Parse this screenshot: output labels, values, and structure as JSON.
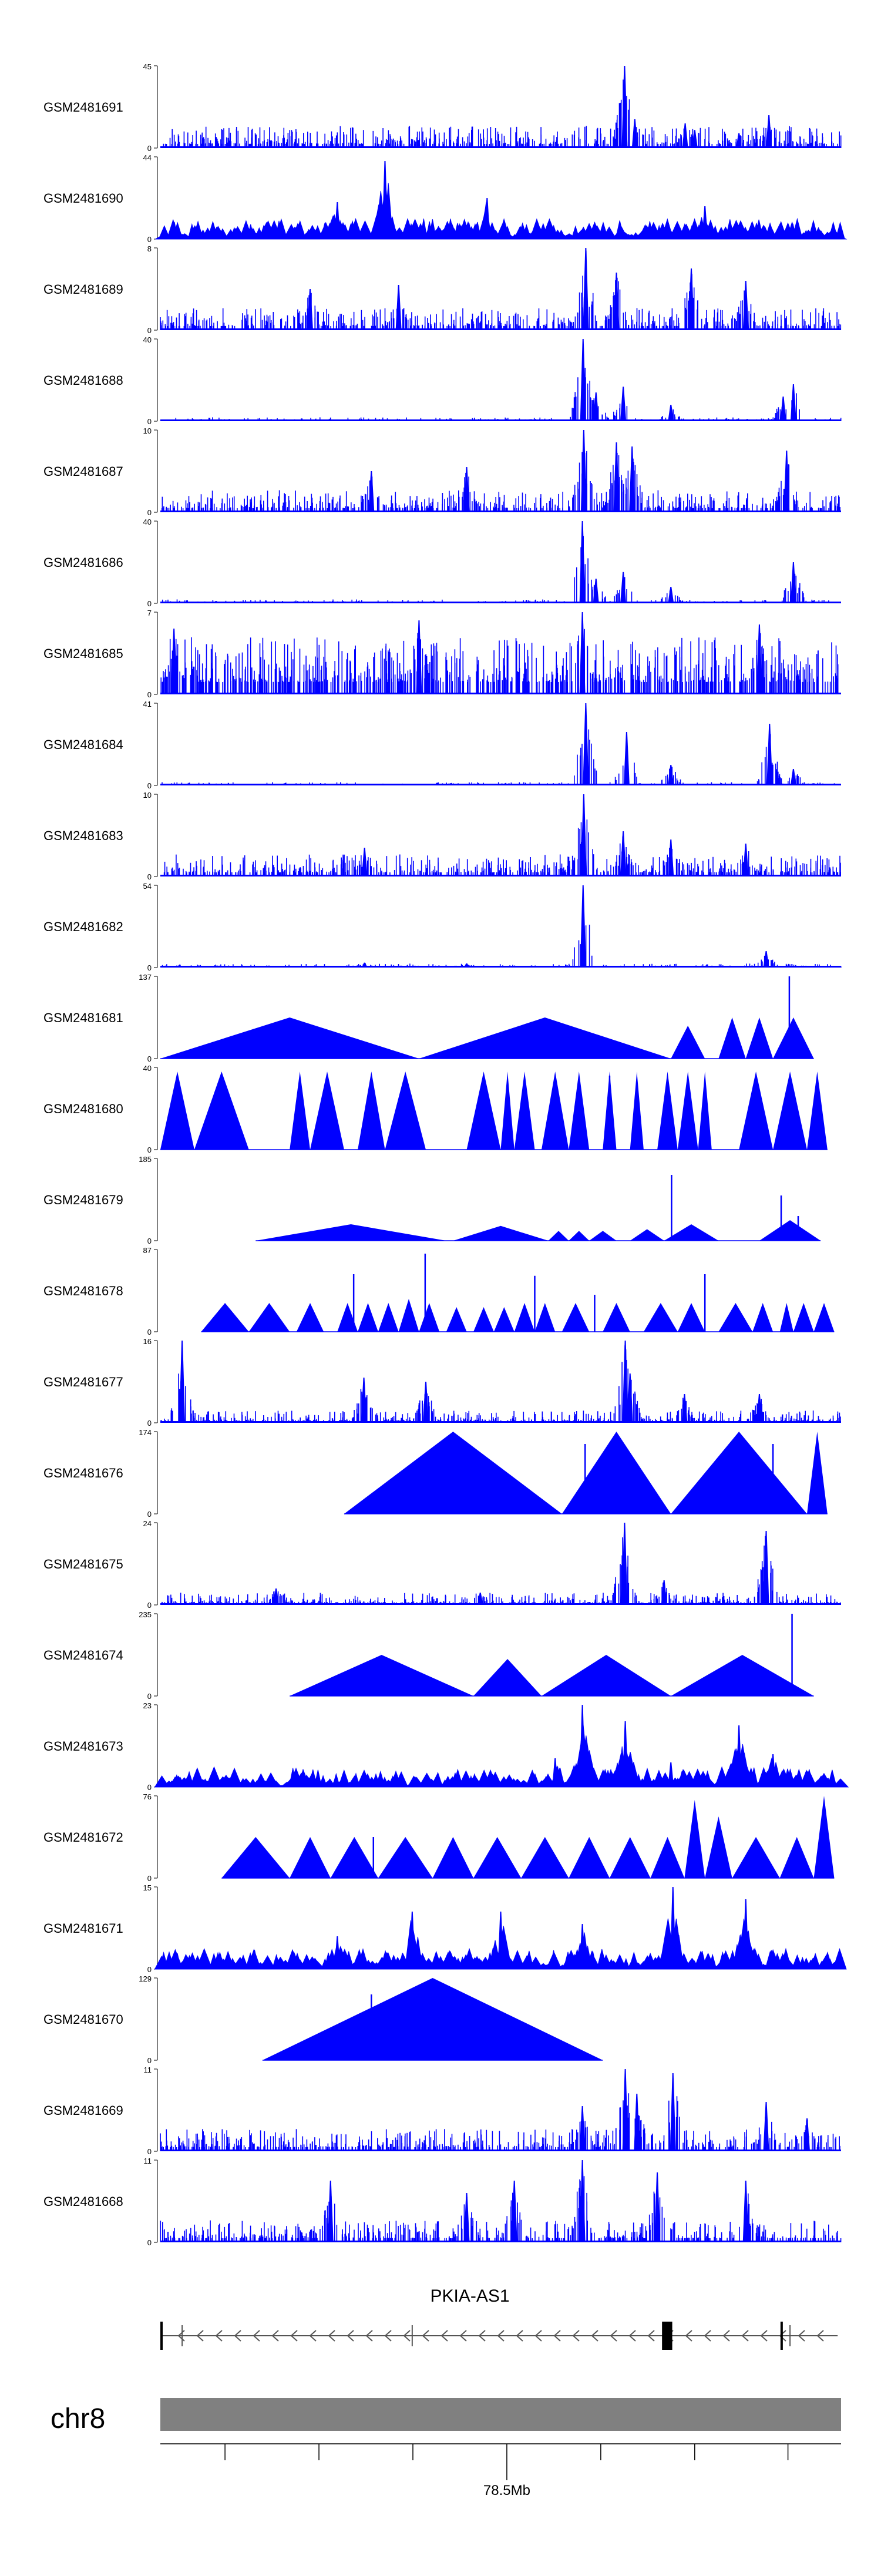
{
  "chart_data": {
    "type": "area",
    "title": "",
    "fill_color": "#0000ff",
    "tracks": [
      {
        "name": "GSM2481691",
        "ymax": "45",
        "ymin": "0",
        "style": "dense",
        "peaks": [
          [
            0.682,
            1.0
          ],
          [
            0.697,
            0.35
          ],
          [
            0.771,
            0.3
          ],
          [
            0.894,
            0.4
          ],
          [
            0.85,
            0.18
          ],
          [
            0.785,
            0.22
          ]
        ]
      },
      {
        "name": "GSM2481690",
        "ymax": "44",
        "ymin": "0",
        "style": "dense-tri",
        "peaks": [
          [
            0.33,
            0.95
          ],
          [
            0.26,
            0.45
          ],
          [
            0.48,
            0.5
          ],
          [
            0.8,
            0.4
          ]
        ]
      },
      {
        "name": "GSM2481689",
        "ymax": "8",
        "ymin": "0",
        "style": "dense",
        "peaks": [
          [
            0.625,
            1.0
          ],
          [
            0.67,
            0.7
          ],
          [
            0.78,
            0.75
          ],
          [
            0.35,
            0.55
          ],
          [
            0.22,
            0.5
          ],
          [
            0.86,
            0.6
          ]
        ]
      },
      {
        "name": "GSM2481688",
        "ymax": "40",
        "ymin": "0",
        "style": "sparse",
        "peaks": [
          [
            0.621,
            1.0
          ],
          [
            0.64,
            0.35
          ],
          [
            0.68,
            0.42
          ],
          [
            0.75,
            0.2
          ],
          [
            0.93,
            0.45
          ],
          [
            0.915,
            0.3
          ]
        ]
      },
      {
        "name": "GSM2481687",
        "ymax": "10",
        "ymin": "0",
        "style": "dense",
        "peaks": [
          [
            0.622,
            1.0
          ],
          [
            0.67,
            0.85
          ],
          [
            0.693,
            0.8
          ],
          [
            0.92,
            0.75
          ],
          [
            0.45,
            0.55
          ],
          [
            0.31,
            0.5
          ]
        ]
      },
      {
        "name": "GSM2481686",
        "ymax": "40",
        "ymin": "0",
        "style": "sparse",
        "peaks": [
          [
            0.62,
            1.0
          ],
          [
            0.68,
            0.38
          ],
          [
            0.75,
            0.2
          ],
          [
            0.93,
            0.5
          ],
          [
            0.64,
            0.3
          ]
        ]
      },
      {
        "name": "GSM2481685",
        "ymax": "7",
        "ymin": "0",
        "style": "very-dense",
        "peaks": [
          [
            0.02,
            0.8
          ],
          [
            0.38,
            0.9
          ],
          [
            0.62,
            1.0
          ],
          [
            0.88,
            0.85
          ]
        ]
      },
      {
        "name": "GSM2481684",
        "ymax": "41",
        "ymin": "0",
        "style": "clusters",
        "peaks": [
          [
            0.625,
            1.0
          ],
          [
            0.685,
            0.65
          ],
          [
            0.75,
            0.25
          ],
          [
            0.895,
            0.75
          ],
          [
            0.93,
            0.2
          ]
        ]
      },
      {
        "name": "GSM2481683",
        "ymax": "10",
        "ymin": "0",
        "style": "dense",
        "peaks": [
          [
            0.622,
            1.0
          ],
          [
            0.68,
            0.55
          ],
          [
            0.75,
            0.45
          ],
          [
            0.86,
            0.4
          ],
          [
            0.3,
            0.35
          ]
        ]
      },
      {
        "name": "GSM2481682",
        "ymax": "54",
        "ymin": "0",
        "style": "sparse",
        "peaks": [
          [
            0.621,
            1.0
          ],
          [
            0.89,
            0.2
          ],
          [
            0.3,
            0.06
          ],
          [
            0.45,
            0.05
          ]
        ]
      },
      {
        "name": "GSM2481681",
        "ymax": "137",
        "ymin": "0",
        "style": "triangles",
        "tri": [
          [
            0.0,
            0.5,
            0.38
          ],
          [
            0.38,
            0.5,
            0.75
          ],
          [
            0.75,
            0.4,
            0.8
          ],
          [
            0.82,
            0.5,
            0.86
          ],
          [
            0.86,
            0.5,
            0.9
          ],
          [
            0.9,
            0.5,
            0.96
          ]
        ],
        "spikes": [
          [
            0.924,
            1.0
          ]
        ]
      },
      {
        "name": "GSM2481680",
        "ymax": "40",
        "ymin": "0",
        "style": "triangles",
        "tri": [
          [
            0.0,
            0.95,
            0.05
          ],
          [
            0.05,
            0.95,
            0.13
          ],
          [
            0.19,
            0.95,
            0.22
          ],
          [
            0.22,
            0.95,
            0.27
          ],
          [
            0.29,
            0.95,
            0.33
          ],
          [
            0.33,
            0.95,
            0.39
          ],
          [
            0.45,
            0.95,
            0.5
          ],
          [
            0.5,
            0.95,
            0.52
          ],
          [
            0.52,
            0.95,
            0.55
          ],
          [
            0.56,
            0.95,
            0.6
          ],
          [
            0.6,
            0.95,
            0.63
          ],
          [
            0.65,
            0.95,
            0.67
          ],
          [
            0.69,
            0.95,
            0.71
          ],
          [
            0.73,
            0.95,
            0.76
          ],
          [
            0.76,
            0.95,
            0.79
          ],
          [
            0.79,
            0.95,
            0.81
          ],
          [
            0.85,
            0.95,
            0.9
          ],
          [
            0.9,
            0.95,
            0.95
          ],
          [
            0.95,
            0.95,
            0.98
          ]
        ],
        "spikes": [
          [
            0.66,
            0.9
          ]
        ]
      },
      {
        "name": "GSM2481679",
        "ymax": "185",
        "ymin": "0",
        "style": "triangles",
        "tri": [
          [
            0.14,
            0.2,
            0.42
          ],
          [
            0.43,
            0.18,
            0.57
          ],
          [
            0.57,
            0.12,
            0.6
          ],
          [
            0.6,
            0.12,
            0.63
          ],
          [
            0.63,
            0.12,
            0.67
          ],
          [
            0.69,
            0.14,
            0.74
          ],
          [
            0.74,
            0.2,
            0.82
          ],
          [
            0.88,
            0.25,
            0.97
          ]
        ],
        "spikes": [
          [
            0.751,
            0.8
          ],
          [
            0.912,
            0.55
          ],
          [
            0.937,
            0.3
          ]
        ]
      },
      {
        "name": "GSM2481678",
        "ymax": "87",
        "ymin": "0",
        "style": "triangles",
        "tri": [
          [
            0.06,
            0.35,
            0.13
          ],
          [
            0.13,
            0.35,
            0.19
          ],
          [
            0.2,
            0.35,
            0.24
          ],
          [
            0.26,
            0.35,
            0.29
          ],
          [
            0.29,
            0.35,
            0.32
          ],
          [
            0.32,
            0.35,
            0.35
          ],
          [
            0.35,
            0.4,
            0.38
          ],
          [
            0.38,
            0.35,
            0.41
          ],
          [
            0.42,
            0.3,
            0.45
          ],
          [
            0.46,
            0.3,
            0.49
          ],
          [
            0.49,
            0.3,
            0.52
          ],
          [
            0.52,
            0.35,
            0.55
          ],
          [
            0.55,
            0.35,
            0.58
          ],
          [
            0.59,
            0.35,
            0.63
          ],
          [
            0.65,
            0.35,
            0.69
          ],
          [
            0.71,
            0.35,
            0.76
          ],
          [
            0.76,
            0.35,
            0.8
          ],
          [
            0.82,
            0.35,
            0.87
          ],
          [
            0.87,
            0.35,
            0.9
          ],
          [
            0.91,
            0.35,
            0.93
          ],
          [
            0.93,
            0.35,
            0.96
          ],
          [
            0.96,
            0.35,
            0.99
          ]
        ],
        "spikes": [
          [
            0.389,
            0.95
          ],
          [
            0.284,
            0.7
          ],
          [
            0.55,
            0.68
          ],
          [
            0.638,
            0.45
          ],
          [
            0.8,
            0.7
          ],
          [
            0.92,
            0.3
          ]
        ]
      },
      {
        "name": "GSM2481677",
        "ymax": "16",
        "ymin": "0",
        "style": "dense-low",
        "peaks": [
          [
            0.032,
            1.0
          ],
          [
            0.299,
            0.55
          ],
          [
            0.39,
            0.5
          ],
          [
            0.683,
            1.0
          ],
          [
            0.69,
            0.6
          ],
          [
            0.77,
            0.35
          ],
          [
            0.88,
            0.35
          ]
        ]
      },
      {
        "name": "GSM2481676",
        "ymax": "174",
        "ymin": "0",
        "style": "triangles",
        "tri": [
          [
            0.27,
            1.0,
            0.59
          ],
          [
            0.59,
            1.0,
            0.75
          ],
          [
            0.75,
            1.0,
            0.95
          ],
          [
            0.95,
            1.0,
            0.98
          ]
        ],
        "spikes": [
          [
            0.624,
            0.85
          ],
          [
            0.9,
            0.85
          ]
        ]
      },
      {
        "name": "GSM2481675",
        "ymax": "24",
        "ymin": "0",
        "style": "dense-low",
        "peaks": [
          [
            0.682,
            1.0
          ],
          [
            0.89,
            0.9
          ],
          [
            0.68,
            0.55
          ],
          [
            0.74,
            0.3
          ],
          [
            0.17,
            0.2
          ],
          [
            0.47,
            0.15
          ]
        ]
      },
      {
        "name": "GSM2481674",
        "ymax": "235",
        "ymin": "0",
        "style": "triangles",
        "tri": [
          [
            0.19,
            0.5,
            0.46
          ],
          [
            0.46,
            0.45,
            0.56
          ],
          [
            0.56,
            0.5,
            0.75
          ],
          [
            0.75,
            0.5,
            0.96
          ]
        ],
        "spikes": [
          [
            0.928,
            1.0
          ]
        ]
      },
      {
        "name": "GSM2481673",
        "ymax": "23",
        "ymin": "0",
        "style": "dense-tri",
        "peaks": [
          [
            0.62,
            1.0
          ],
          [
            0.683,
            0.8
          ],
          [
            0.85,
            0.75
          ],
          [
            0.9,
            0.4
          ],
          [
            0.75,
            0.3
          ],
          [
            0.58,
            0.35
          ]
        ]
      },
      {
        "name": "GSM2481672",
        "ymax": "76",
        "ymin": "0",
        "style": "triangles",
        "tri": [
          [
            0.09,
            0.5,
            0.19
          ],
          [
            0.19,
            0.5,
            0.25
          ],
          [
            0.25,
            0.5,
            0.32
          ],
          [
            0.32,
            0.5,
            0.4
          ],
          [
            0.4,
            0.5,
            0.46
          ],
          [
            0.46,
            0.5,
            0.53
          ],
          [
            0.53,
            0.5,
            0.6
          ],
          [
            0.6,
            0.5,
            0.66
          ],
          [
            0.66,
            0.5,
            0.72
          ],
          [
            0.72,
            0.5,
            0.77
          ],
          [
            0.77,
            0.95,
            0.8
          ],
          [
            0.8,
            0.75,
            0.84
          ],
          [
            0.84,
            0.5,
            0.91
          ],
          [
            0.91,
            0.5,
            0.96
          ],
          [
            0.96,
            1.0,
            0.99
          ]
        ],
        "spikes": [
          [
            0.313,
            0.5
          ]
        ]
      },
      {
        "name": "GSM2481671",
        "ymax": "15",
        "ymin": "0",
        "style": "dense-tri",
        "peaks": [
          [
            0.37,
            0.7
          ],
          [
            0.5,
            0.7
          ],
          [
            0.753,
            1.0
          ],
          [
            0.86,
            0.85
          ],
          [
            0.62,
            0.55
          ],
          [
            0.26,
            0.4
          ]
        ]
      },
      {
        "name": "GSM2481670",
        "ymax": "129",
        "ymin": "0",
        "style": "triangles",
        "tri": [
          [
            0.15,
            1.0,
            0.65
          ]
        ],
        "spikes": [
          [
            0.31,
            0.8
          ]
        ]
      },
      {
        "name": "GSM2481669",
        "ymax": "11",
        "ymin": "0",
        "style": "dense",
        "peaks": [
          [
            0.683,
            1.0
          ],
          [
            0.753,
            0.95
          ],
          [
            0.62,
            0.55
          ],
          [
            0.89,
            0.6
          ],
          [
            0.95,
            0.4
          ],
          [
            0.7,
            0.7
          ]
        ]
      },
      {
        "name": "GSM2481668",
        "ymax": "11",
        "ymin": "0",
        "style": "dense",
        "peaks": [
          [
            0.62,
            1.0
          ],
          [
            0.25,
            0.75
          ],
          [
            0.52,
            0.75
          ],
          [
            0.73,
            0.85
          ],
          [
            0.86,
            0.75
          ],
          [
            0.45,
            0.6
          ]
        ]
      }
    ],
    "gene": {
      "label": "PKIA-AS1",
      "strand": "minus",
      "exons": [
        [
          0.0,
          0.003
        ],
        [
          0.737,
          0.752
        ],
        [
          0.911,
          0.913
        ]
      ],
      "ticks": [
        0.032,
        0.37,
        0.912,
        0.925
      ]
    },
    "chromosome": {
      "name": "chr8",
      "ticks": [
        0.095,
        0.233,
        0.371,
        0.509,
        0.647,
        0.785,
        0.922
      ],
      "tick_label": "78.5Mb",
      "label_tick_index": 3
    }
  }
}
